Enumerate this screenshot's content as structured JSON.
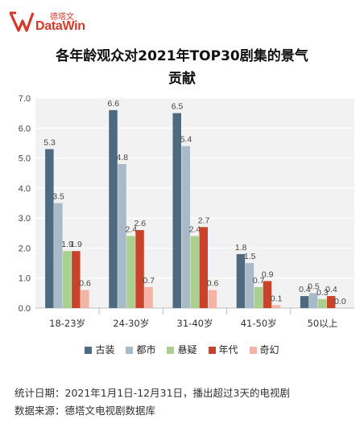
{
  "brand": {
    "cn": "德塔文",
    "en": "DataWin"
  },
  "title_lines": [
    "各年龄观众对2021年TOP30剧集的景气",
    "贡献"
  ],
  "chart_data": {
    "type": "bar",
    "title": "各年龄观众对2021年TOP30剧集的景气贡献",
    "categories": [
      "18-23岁",
      "24-30岁",
      "31-40岁",
      "41-50岁",
      "50以上"
    ],
    "series": [
      {
        "name": "古装",
        "color": "#4e6a80",
        "values": [
          5.3,
          6.6,
          6.5,
          1.8,
          0.4
        ]
      },
      {
        "name": "都市",
        "color": "#a8b9c7",
        "values": [
          3.5,
          4.8,
          5.4,
          1.5,
          0.5
        ]
      },
      {
        "name": "悬疑",
        "color": "#a9d08e",
        "values": [
          1.9,
          2.4,
          2.4,
          0.7,
          0.3
        ]
      },
      {
        "name": "年代",
        "color": "#c8432a",
        "values": [
          1.9,
          2.6,
          2.7,
          0.9,
          0.4
        ]
      },
      {
        "name": "奇幻",
        "color": "#f2b5a5",
        "values": [
          0.6,
          0.7,
          0.6,
          0.1,
          0.0
        ]
      }
    ],
    "yticks": [
      "0.0",
      "1.0",
      "2.0",
      "3.0",
      "4.0",
      "5.0",
      "6.0",
      "7.0"
    ],
    "ylim": [
      0,
      7
    ],
    "grid": true,
    "legend": "bottom"
  },
  "footnote": {
    "period": "统计日期：2021年1月1日-12月31日，播出超过3天的电视剧",
    "source": "数据来源：德塔文电视剧数据库"
  }
}
